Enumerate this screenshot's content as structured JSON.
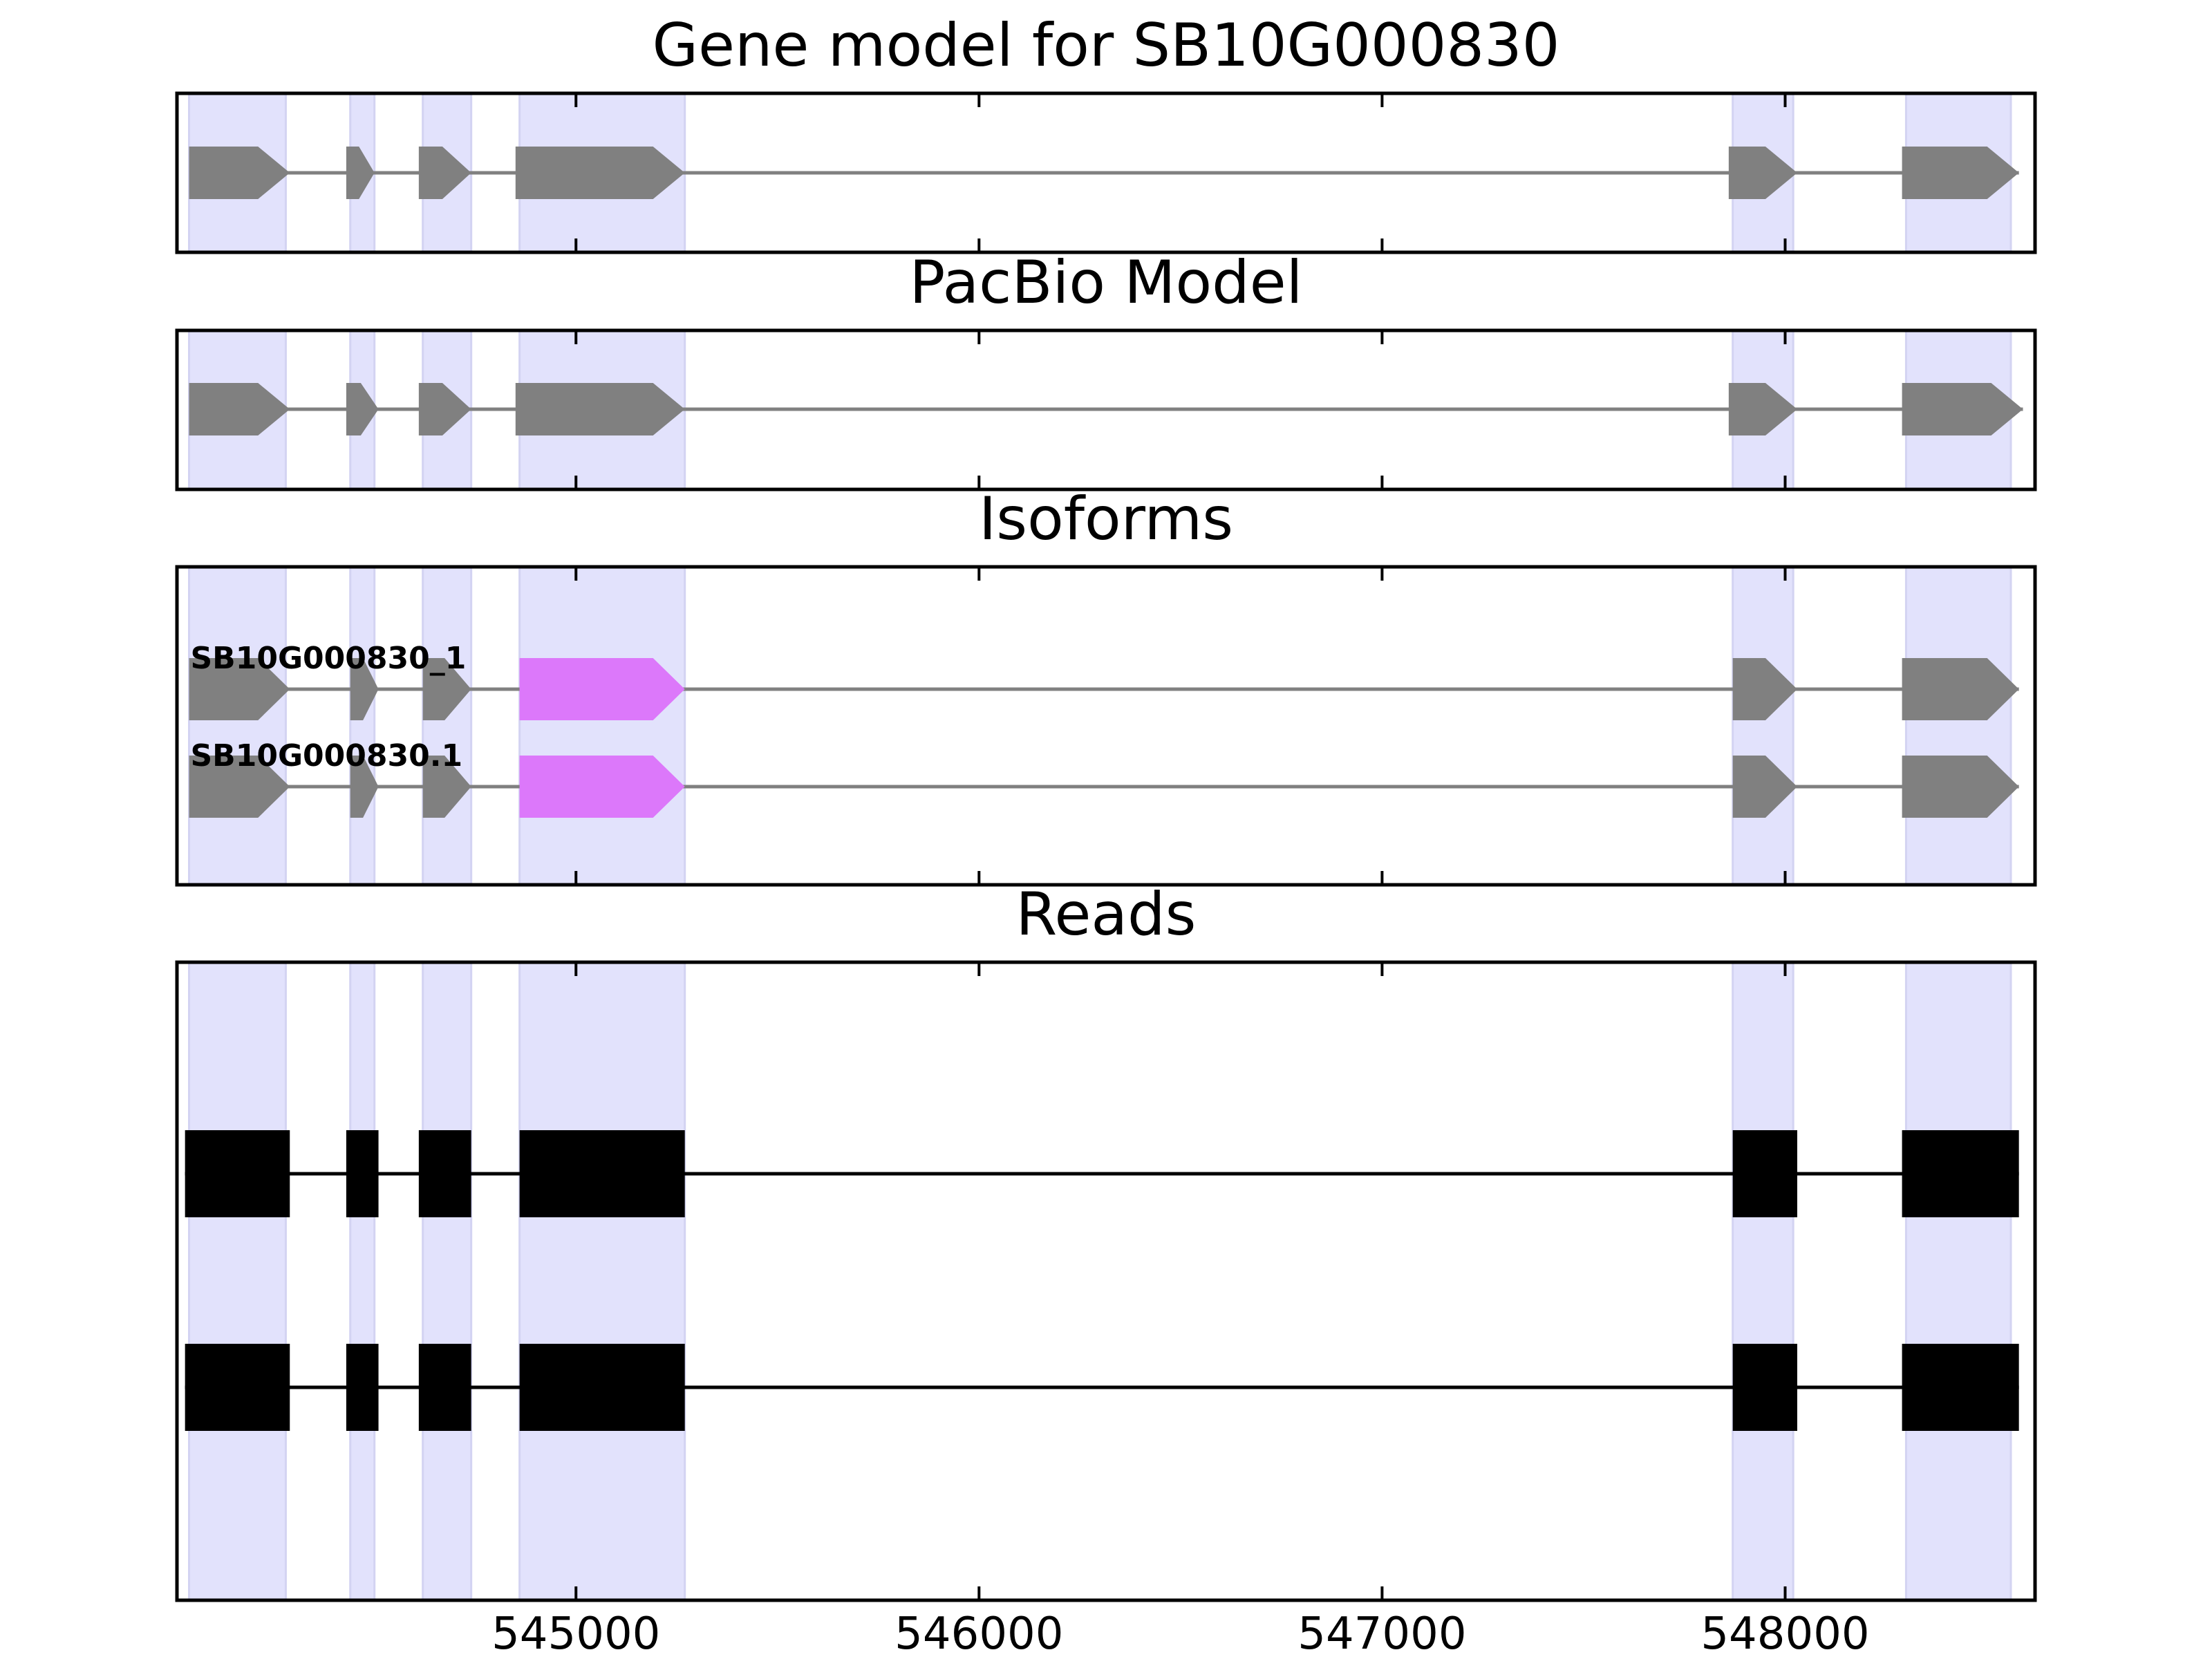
{
  "chart_data": {
    "type": "gene-model-track",
    "panels": [
      {
        "id": "gene-model",
        "title": "Gene model for SB10G000830",
        "style": "arrow",
        "color": "#808080",
        "rows": [
          {
            "label": "",
            "start": 544040,
            "end": 548580,
            "exons": [
              [
                544040,
                544290
              ],
              [
                544430,
                544500
              ],
              [
                544610,
                544740
              ],
              [
                544850,
                545270
              ],
              [
                547860,
                548030
              ],
              [
                548290,
                548580
              ]
            ]
          }
        ]
      },
      {
        "id": "pacbio-model",
        "title": "PacBio Model",
        "style": "arrow",
        "color": "#808080",
        "rows": [
          {
            "label": "",
            "start": 544040,
            "end": 548590,
            "exons": [
              [
                544040,
                544290
              ],
              [
                544430,
                544510
              ],
              [
                544610,
                544740
              ],
              [
                544850,
                545270
              ],
              [
                547860,
                548030
              ],
              [
                548290,
                548590
              ]
            ]
          }
        ]
      },
      {
        "id": "isoforms",
        "title": "Isoforms",
        "style": "arrow",
        "color": "#808080",
        "highlight_color": "#dc78fa",
        "rows": [
          {
            "label": "SB10G000830_1",
            "start": 544040,
            "end": 548580,
            "exons": [
              [
                544040,
                544290
              ],
              [
                544440,
                544510
              ],
              [
                544620,
                544740
              ],
              [
                544860,
                545270
              ],
              [
                547870,
                548030
              ],
              [
                548290,
                548580
              ]
            ],
            "highlight": [
              3
            ]
          },
          {
            "label": "SB10G000830.1",
            "start": 544040,
            "end": 548580,
            "exons": [
              [
                544040,
                544290
              ],
              [
                544440,
                544510
              ],
              [
                544620,
                544740
              ],
              [
                544860,
                545270
              ],
              [
                547870,
                548030
              ],
              [
                548290,
                548580
              ]
            ],
            "highlight": [
              3
            ]
          }
        ]
      },
      {
        "id": "reads",
        "title": "Reads",
        "style": "box",
        "color": "#000000",
        "rows": [
          {
            "label": "",
            "start": 544030,
            "end": 548580,
            "exons": [
              [
                544030,
                544290
              ],
              [
                544430,
                544510
              ],
              [
                544610,
                544740
              ],
              [
                544860,
                545270
              ],
              [
                547870,
                548030
              ],
              [
                548290,
                548580
              ]
            ]
          },
          {
            "label": "",
            "start": 544030,
            "end": 548580,
            "exons": [
              [
                544030,
                544290
              ],
              [
                544430,
                544510
              ],
              [
                544610,
                544740
              ],
              [
                544860,
                545270
              ],
              [
                547870,
                548030
              ],
              [
                548290,
                548580
              ]
            ]
          }
        ]
      }
    ],
    "shaded_regions": [
      [
        544040,
        544280
      ],
      [
        544440,
        544500
      ],
      [
        544620,
        544740
      ],
      [
        544860,
        545270
      ],
      [
        547870,
        548020
      ],
      [
        548300,
        548560
      ]
    ],
    "shade_color": "#e2e2fc",
    "x_axis": {
      "xlim": [
        544010,
        548620
      ],
      "ticks": [
        545000,
        546000,
        547000,
        548000
      ],
      "tick_labels": [
        "545000",
        "546000",
        "547000",
        "548000"
      ]
    },
    "grid": false,
    "legend": "none"
  }
}
